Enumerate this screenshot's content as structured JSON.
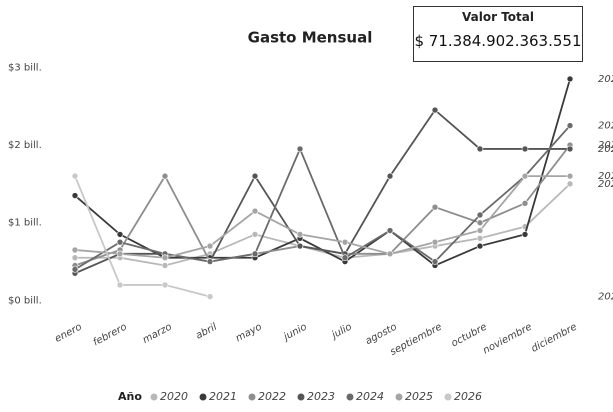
{
  "chart_data": {
    "type": "line",
    "title": "Gasto Mensual",
    "card": {
      "label": "Valor Total",
      "value": "$ 71.384.902.363.551"
    },
    "categories": [
      "enero",
      "febrero",
      "marzo",
      "abril",
      "mayo",
      "junio",
      "julio",
      "agosto",
      "septiembre",
      "octubre",
      "noviembre",
      "diciembre"
    ],
    "ylim": [
      -0.2,
      3.3
    ],
    "yticks": [
      {
        "value": 0,
        "label": "$0 bill."
      },
      {
        "value": 1,
        "label": "$1 bill."
      },
      {
        "value": 2,
        "label": "$2 bill."
      },
      {
        "value": 3,
        "label": "$3 bill."
      }
    ],
    "legend_title": "Año",
    "series": [
      {
        "name": "2020",
        "color": "#b8b8b8",
        "values": [
          0.55,
          0.55,
          0.45,
          0.6,
          0.85,
          0.7,
          0.55,
          0.6,
          0.7,
          0.8,
          0.95,
          1.5
        ]
      },
      {
        "name": "2021",
        "color": "#3a3a3a",
        "values": [
          1.35,
          0.85,
          0.55,
          0.55,
          0.55,
          0.8,
          0.5,
          0.9,
          0.45,
          0.7,
          0.85,
          2.85
        ]
      },
      {
        "name": "2022",
        "color": "#8e8e8e",
        "values": [
          0.45,
          0.65,
          1.6,
          0.5,
          0.6,
          0.7,
          0.6,
          0.6,
          1.2,
          1.0,
          1.25,
          2.0
        ]
      },
      {
        "name": "2023",
        "color": "#555555",
        "values": [
          0.35,
          0.6,
          0.6,
          0.5,
          1.6,
          0.7,
          0.6,
          1.6,
          2.45,
          1.95,
          1.95,
          1.95
        ]
      },
      {
        "name": "2024",
        "color": "#6a6a6a",
        "values": [
          0.4,
          0.75,
          0.6,
          0.5,
          0.6,
          1.95,
          0.55,
          0.9,
          0.5,
          1.1,
          1.6,
          2.25
        ]
      },
      {
        "name": "2025",
        "color": "#a5a5a5",
        "values": [
          0.65,
          0.6,
          0.55,
          0.7,
          1.15,
          0.85,
          0.75,
          0.6,
          0.75,
          0.9,
          1.6,
          1.6
        ]
      },
      {
        "name": "2026",
        "color": "#c8c8c8",
        "values": [
          1.6,
          0.2,
          0.2,
          0.05,
          null,
          null,
          null,
          null,
          null,
          null,
          null,
          null
        ]
      }
    ]
  }
}
